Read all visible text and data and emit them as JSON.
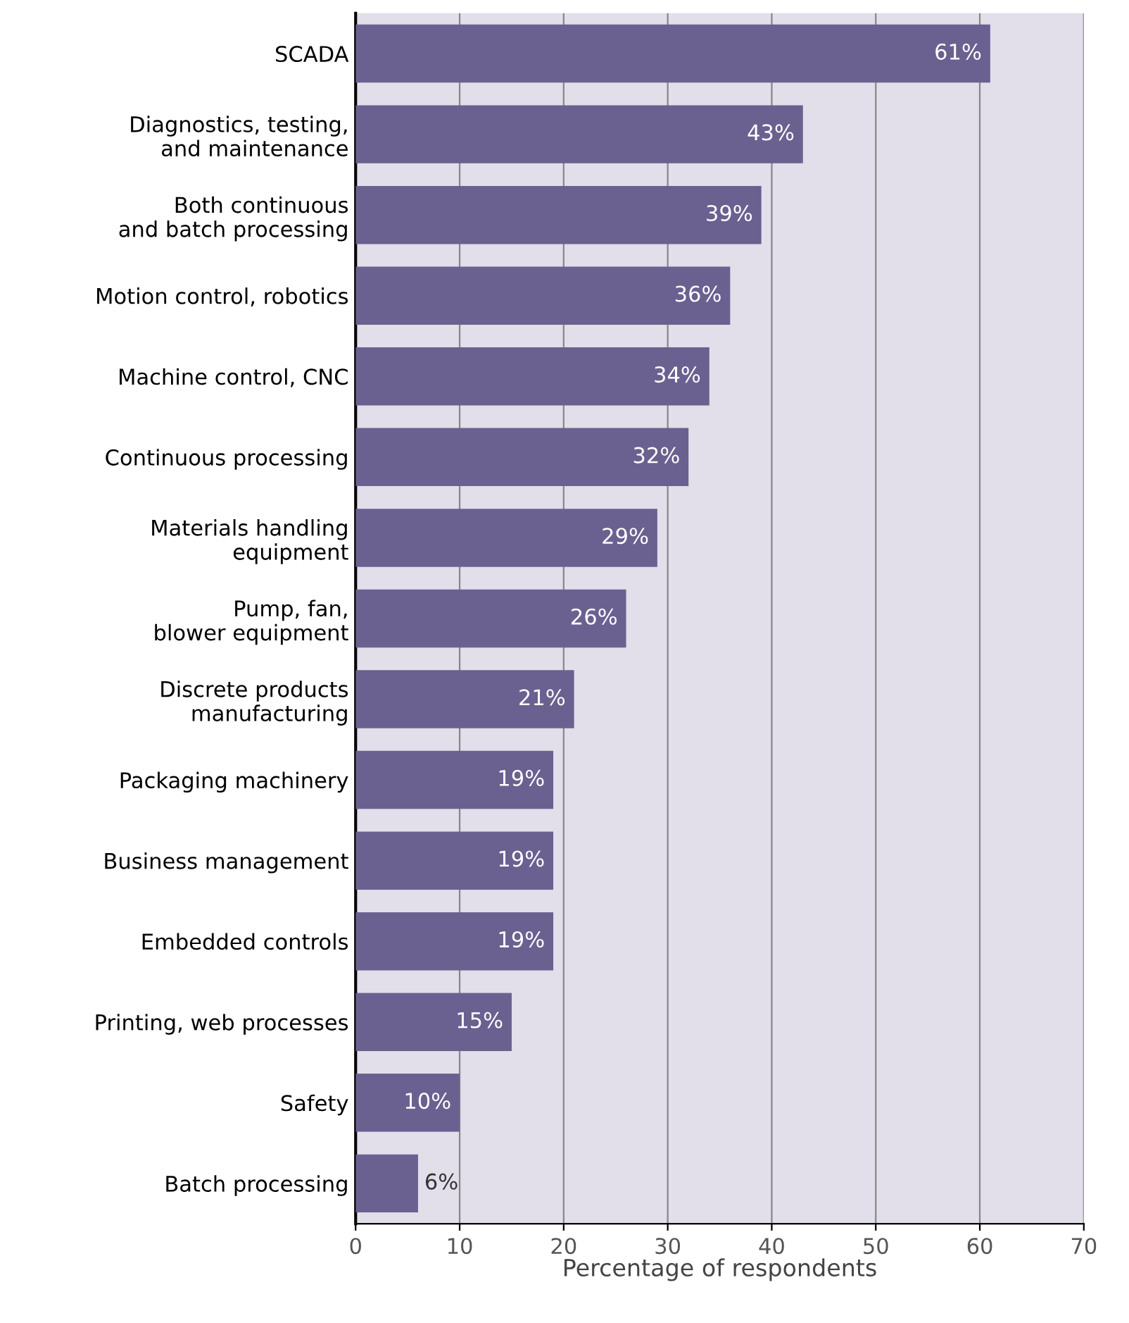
{
  "chart_data": {
    "type": "bar",
    "orientation": "horizontal",
    "categories": [
      "SCADA",
      "Diagnostics, testing,\nand maintenance",
      "Both continuous\nand batch processing",
      "Motion control, robotics",
      "Machine control, CNC",
      "Continuous processing",
      "Materials handling\nequipment",
      "Pump, fan,\nblower equipment",
      "Discrete products\nmanufacturing",
      "Packaging machinery",
      "Business management",
      "Embedded controls",
      "Printing, web processes",
      "Safety",
      "Batch processing"
    ],
    "values": [
      61,
      43,
      39,
      36,
      34,
      32,
      29,
      26,
      21,
      19,
      19,
      19,
      15,
      10,
      6
    ],
    "value_labels": [
      "61%",
      "43%",
      "39%",
      "36%",
      "34%",
      "32%",
      "29%",
      "26%",
      "21%",
      "19%",
      "19%",
      "19%",
      "15%",
      "10%",
      "6%"
    ],
    "color": "#6b6190",
    "xlabel": "Percentage of respondents",
    "xlim": [
      0,
      70
    ],
    "xticks": [
      0,
      10,
      20,
      30,
      40,
      50,
      60,
      70
    ],
    "grid": "x",
    "legend": false
  }
}
